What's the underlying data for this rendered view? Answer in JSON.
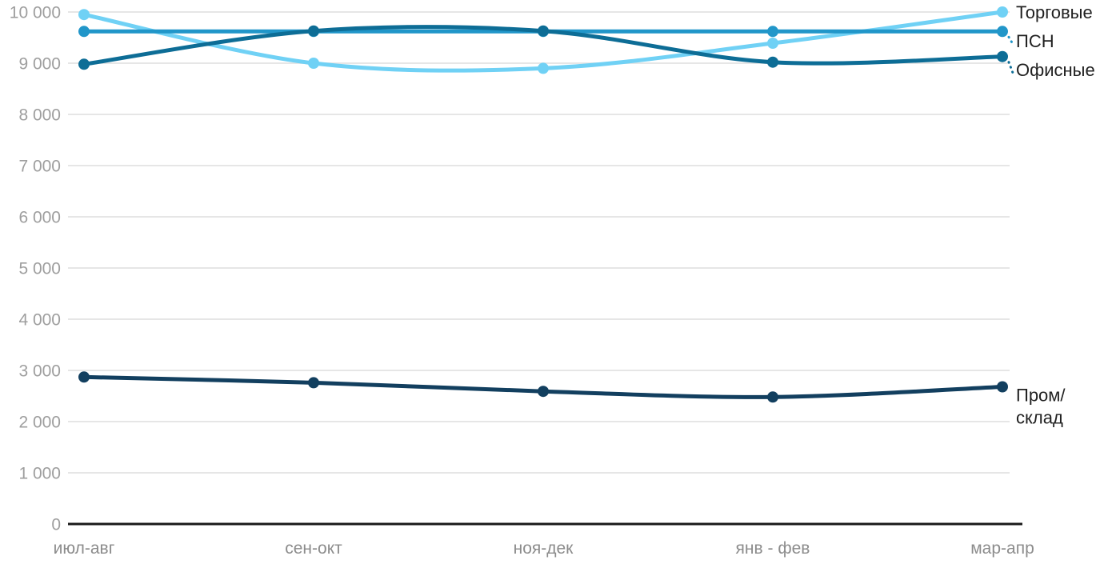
{
  "chart_data": {
    "type": "line",
    "title": "",
    "xlabel": "",
    "ylabel": "",
    "categories": [
      "июл-авг",
      "сен-окт",
      "ноя-дек",
      "янв - фев",
      "мар-апр"
    ],
    "series": [
      {
        "key": "torgovye",
        "name": "Торговые",
        "label_lines": [
          "Торговые"
        ],
        "color": "#70D1F5",
        "leader_line": false,
        "values": [
          9950,
          9000,
          8900,
          9390,
          10000
        ]
      },
      {
        "key": "psn",
        "name": "ПСН",
        "label_lines": [
          "ПСН"
        ],
        "color": "#2196C9",
        "leader_line": true,
        "values": [
          9620,
          9620,
          9620,
          9620,
          9620
        ]
      },
      {
        "key": "ofisnye",
        "name": "Офисные",
        "label_lines": [
          "Офисные"
        ],
        "color": "#0D6D96",
        "leader_line": true,
        "values": [
          8980,
          9630,
          9630,
          9020,
          9130
        ]
      },
      {
        "key": "prom-sklad",
        "name": "Пром/склад",
        "label_lines": [
          "Пром/",
          "склад"
        ],
        "color": "#123F5F",
        "leader_line": false,
        "values": [
          2870,
          2760,
          2590,
          2480,
          2680
        ]
      }
    ],
    "ylim": [
      0,
      10000
    ],
    "ytick_step": 1000,
    "ytick_labels": [
      "0",
      "1 000",
      "2 000",
      "3 000",
      "4 000",
      "5 000",
      "6 000",
      "7 000",
      "8 000",
      "9 000",
      "10 000"
    ],
    "grid": true,
    "legend_position": "end-of-line"
  },
  "style": {
    "background": "#ffffff",
    "grid_color": "#e6e6e6",
    "axis_color": "#1a1a1a",
    "ytick_color": "#9e9e9e",
    "xtick_color": "#8c8c8c",
    "series_label_color": "#212121"
  }
}
